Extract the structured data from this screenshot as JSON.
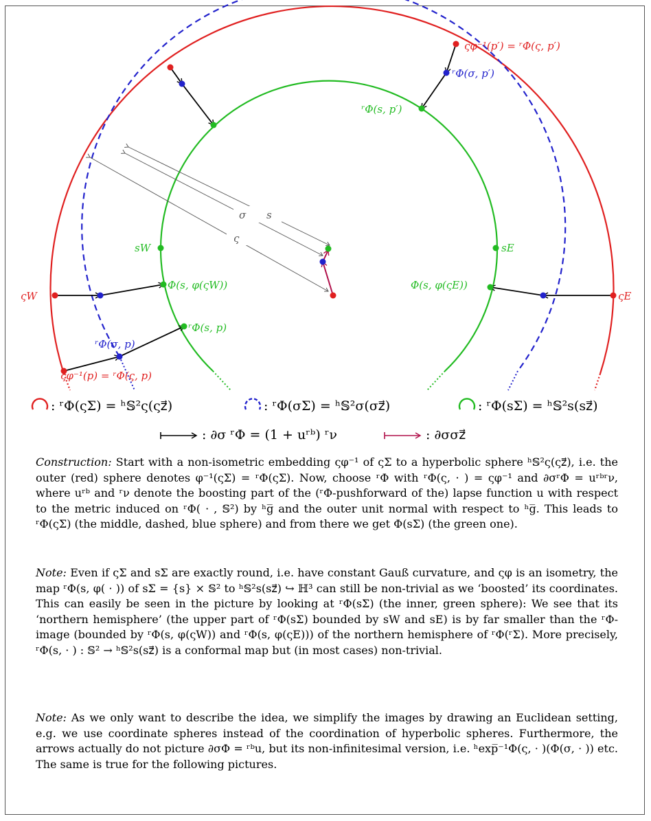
{
  "figure": {
    "labels": {
      "red_top": "ςφ⁻¹(p′) = ʳΦ(ς, p′)",
      "blue_top": "ʳΦ(σ, p′)",
      "green_top": "ʳΦ(s, p′)",
      "sigma": "σ",
      "s": "s",
      "varsigma": "ς",
      "sW": "sW",
      "sE": "sE",
      "vW": "ςW",
      "vE": "ςE",
      "phi_W": "Φ(s, φ(ςW))",
      "phi_E": "Φ(s, φ(ςE))",
      "green_p": "ʳΦ(s, p)",
      "blue_p": "ʳΦ(σ, p)",
      "red_p": "ςφ⁻¹(p) = ʳΦ(ς, p)"
    },
    "colors": {
      "red": "#e02020",
      "blue": "#2222cc",
      "green": "#22bb22",
      "purple": "#b0104a"
    }
  },
  "legend": {
    "red": ": ʳΦ(ςΣ) = ʰ𝕊²ς(ςz⃗)",
    "blue": ": ʳΦ(σΣ) = ʰ𝕊²σ(σz⃗)",
    "green": ": ʳΦ(sΣ) = ʰ𝕊²s(sz⃗)",
    "black_arrow": ": ∂σ ʳΦ = (1 + uʳᵇ) ʳν",
    "purple_arrow": ": ∂σσz⃗"
  },
  "paragraphs": {
    "p1_head": "Construction:",
    "p1_body": "Start with a non-isometric embedding ςφ⁻¹ of ςΣ to a hyperbolic sphere ʰ𝕊²ς(ςz⃗), i.e. the outer (red) sphere denotes φ⁻¹(ςΣ) = ʳΦ(ςΣ). Now, choose ʳΦ with ʳΦ(ς, · ) = ςφ⁻¹ and ∂σʳΦ = uʳᵇʳν, where uʳᵇ and ʳν denote the boosting part of the (ʳΦ-pushforward of the) lapse function u with respect to the metric induced on ʳΦ( · , 𝕊²) by ʰg̅ and the outer unit normal with respect to ʰg̅. This leads to ʳΦ(ςΣ) (the middle, dashed, blue sphere) and from there we get Φ(sΣ) (the green one).",
    "p2_head": "Note:",
    "p2_body": "Even if ςΣ and sΣ are exactly round, i.e. have constant Gauß curvature, and ςφ is an isometry, the map ʳΦ(s, φ( · )) of sΣ = {s} × 𝕊² to ʰ𝕊²s(sz⃗) ↪ ℍ³ can still be non-trivial as we ‘boosted’ its coordinates. This can easily be seen in the picture by looking at ʳΦ(sΣ) (the inner, green sphere): We see that its ‘northern hemisphere’ (the upper part of ʳΦ(sΣ) bounded by sW and sE) is by far smaller than the ʳΦ-image (bounded by ʳΦ(s, φ(ςW)) and ʳΦ(s, φ(ςE))) of the northern hemisphere of ʳΦ(ʳΣ). More precisely, ʳΦ(s, · ) : 𝕊² → ʰ𝕊²s(sz⃗) is a conformal map but (in most cases) non-trivial.",
    "p3_head": "Note:",
    "p3_body": "As we only want to describe the idea, we simplify the images by drawing an Euclidean setting, e.g. we use coordinate spheres instead of the coordination of hyperbolic spheres. Furthermore, the arrows actually do not picture ∂σΦ = ʳᵇu, but its non-infinitesimal version, i.e. ʰexp̅⁻¹Φ(ς, · )(Φ(σ, · )) etc. The same is true for the following pictures."
  }
}
